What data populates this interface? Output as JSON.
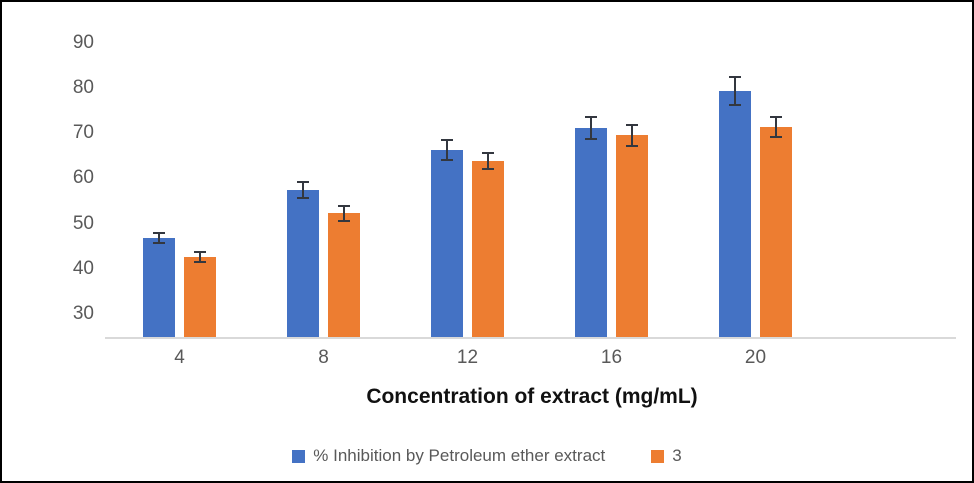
{
  "chart_data": {
    "type": "bar",
    "title": "",
    "xlabel": "Concentration of extract (mg/mL)",
    "ylabel": "",
    "categories": [
      "4",
      "8",
      "12",
      "16",
      "20"
    ],
    "series": [
      {
        "name": "% Inhibition by Petroleum ether extract",
        "color": "#4472C4",
        "values": [
          46.8,
          57.5,
          66.2,
          71.1,
          79.3
        ],
        "errors": [
          1.1,
          1.8,
          2.2,
          2.4,
          3.0
        ]
      },
      {
        "name": "3",
        "color": "#ED7D31",
        "values": [
          42.7,
          52.3,
          63.8,
          69.5,
          71.3
        ],
        "errors": [
          1.1,
          1.6,
          1.8,
          2.3,
          2.2
        ]
      }
    ],
    "yticks": [
      30,
      40,
      50,
      60,
      70,
      80,
      90
    ],
    "ylim": [
      25,
      94
    ],
    "grid": false,
    "legend_position": "bottom",
    "error_bars": true,
    "axis_line_color": "#d9d9d9",
    "tick_text_color": "#595959",
    "error_bar_color": "#33373f"
  }
}
